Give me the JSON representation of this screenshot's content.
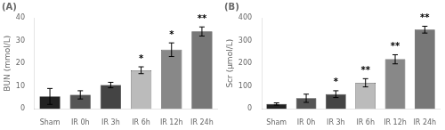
{
  "chart_data": [
    {
      "type": "bar",
      "title": "(A)",
      "categories": [
        "Sham",
        "IR 0h",
        "IR 3h",
        "IR 6h",
        "IR 12h",
        "IR 24h"
      ],
      "values": [
        5.5,
        6.2,
        10.5,
        17.0,
        26.0,
        34.0
      ],
      "errors": [
        3.5,
        1.8,
        1.2,
        1.5,
        3.0,
        2.0
      ],
      "colors": [
        "#222222",
        "#555555",
        "#444444",
        "#bbbbbb",
        "#888888",
        "#777777"
      ],
      "ylabel": "BUN (mmol/L)",
      "ylim": [
        0,
        40
      ],
      "yticks": [
        0,
        10,
        20,
        30,
        40
      ],
      "grid": false,
      "annotations": [
        {
          "category": "IR 6h",
          "text": "*"
        },
        {
          "category": "IR 12h",
          "text": "*"
        },
        {
          "category": "IR 24h",
          "text": "**"
        }
      ]
    },
    {
      "type": "bar",
      "title": "(B)",
      "categories": [
        "Sham",
        "IR 0h",
        "IR 3h",
        "IR 6h",
        "IR 12h",
        "IR 24h"
      ],
      "values": [
        22.0,
        47.0,
        65.0,
        115.0,
        218.0,
        348.0
      ],
      "errors": [
        5.0,
        18.0,
        15.0,
        18.0,
        20.0,
        15.0
      ],
      "colors": [
        "#222222",
        "#555555",
        "#444444",
        "#bbbbbb",
        "#888888",
        "#777777"
      ],
      "ylabel": "Scr (μmol/L)",
      "ylim": [
        0,
        400
      ],
      "yticks": [
        0,
        100,
        200,
        300,
        400
      ],
      "grid": false,
      "annotations": [
        {
          "category": "IR 3h",
          "text": "*"
        },
        {
          "category": "IR 6h",
          "text": "**"
        },
        {
          "category": "IR 12h",
          "text": "**"
        },
        {
          "category": "IR 24h",
          "text": "**"
        }
      ]
    }
  ]
}
